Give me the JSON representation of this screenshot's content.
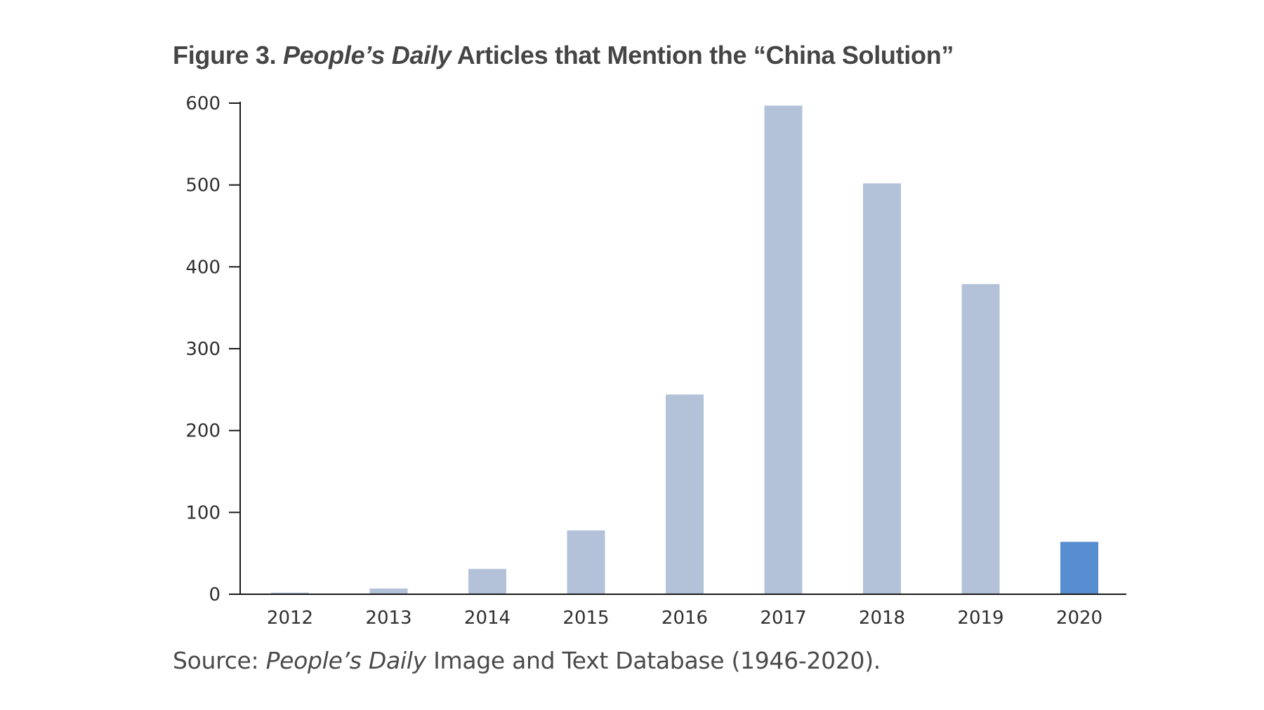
{
  "figure": {
    "title_prefix": "Figure 3.",
    "title_italic": "People’s Daily",
    "title_rest": "Articles that Mention the “China Solution”",
    "source_prefix": "Source:",
    "source_italic": "People’s Daily",
    "source_rest": "Image and Text Database (1946-2020)."
  },
  "chart_data": {
    "type": "bar",
    "categories": [
      "2012",
      "2013",
      "2014",
      "2015",
      "2016",
      "2017",
      "2018",
      "2019",
      "2020"
    ],
    "values": [
      2,
      7,
      31,
      78,
      244,
      597,
      502,
      379,
      64
    ],
    "ylim": [
      0,
      600
    ],
    "yticks": [
      0,
      100,
      200,
      300,
      400,
      500,
      600
    ],
    "bar_color": "#b4c2d9",
    "highlight_color": "#568dd0",
    "highlight_category": "2020",
    "grid": false,
    "legend": "none",
    "xlabel": "",
    "ylabel": ""
  }
}
